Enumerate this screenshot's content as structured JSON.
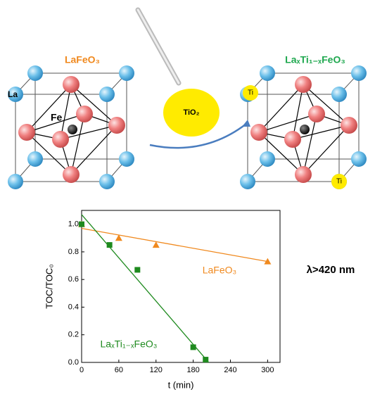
{
  "diagram": {
    "left_title": "LaFeO₃",
    "right_title": "LaₓTi₁₋ₓFeO₃",
    "la_label": "La",
    "fe_label": "Fe",
    "dopant_label": "TiO₂",
    "ti_label_top": "Ti",
    "ti_label_bottom": "Ti"
  },
  "side_note": "λ>420 nm",
  "chart_data": {
    "type": "scatter",
    "x_label": "t (min)",
    "y_label": "TOC/TOC₀",
    "xlim": [
      0,
      320
    ],
    "xticks": [
      0,
      60,
      120,
      180,
      240,
      300
    ],
    "ylim": [
      0,
      1.1
    ],
    "yticks": [
      {
        "value": 0,
        "label": "0.0"
      },
      0.2,
      0.4,
      0.6,
      0.8,
      {
        "value": 1,
        "label": "1.0"
      }
    ],
    "series": [
      {
        "name": "LaFeO₃",
        "color": "#f0891e",
        "marker": "triangle",
        "x": [
          0,
          60,
          120,
          300
        ],
        "values": [
          1.0,
          0.9,
          0.85,
          0.73
        ],
        "fit": {
          "x": [
            0,
            300
          ],
          "values": [
            0.97,
            0.73
          ]
        }
      },
      {
        "name": "LaₓTi₁₋ₓFeO₃",
        "color": "#1e8a1e",
        "marker": "square",
        "x": [
          0,
          45,
          90,
          180,
          200
        ],
        "values": [
          1.0,
          0.85,
          0.67,
          0.11,
          0.02
        ],
        "fit": {
          "x": [
            0,
            205
          ],
          "values": [
            1.07,
            0
          ]
        }
      }
    ]
  }
}
